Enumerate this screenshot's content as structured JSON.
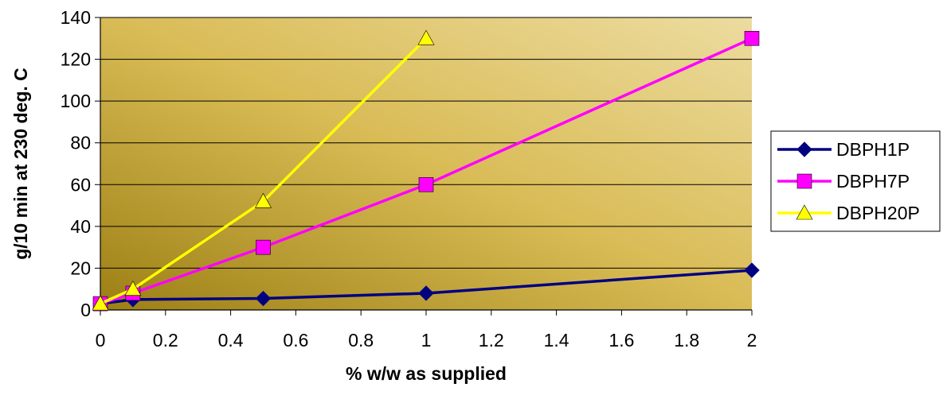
{
  "chart_data": {
    "type": "line",
    "title": "",
    "xlabel": "% w/w as supplied",
    "ylabel": "g/10 min at 230 deg. C",
    "xlim": [
      0,
      2
    ],
    "ylim": [
      0,
      140
    ],
    "xticks": [
      0,
      0.2,
      0.4,
      0.6,
      0.8,
      1,
      1.2,
      1.4,
      1.6,
      1.8,
      2
    ],
    "xtick_labels": [
      "0",
      "0.2",
      "0.4",
      "0.6",
      "0.8",
      "1",
      "1.2",
      "1.4",
      "1.6",
      "1.8",
      "2"
    ],
    "yticks": [
      0,
      20,
      40,
      60,
      80,
      100,
      120,
      140
    ],
    "ytick_labels": [
      "0",
      "20",
      "40",
      "60",
      "80",
      "100",
      "120",
      "140"
    ],
    "grid": "horizontal",
    "legend_position": "right",
    "plot_background": "gold-gradient",
    "series": [
      {
        "name": "DBPH1P",
        "color": "#000080",
        "marker": "diamond",
        "x": [
          0,
          0.1,
          0.5,
          1,
          2
        ],
        "y": [
          3,
          5,
          5.5,
          8,
          19
        ]
      },
      {
        "name": "DBPH7P",
        "color": "#FF00FF",
        "marker": "square",
        "x": [
          0,
          0.1,
          0.5,
          1,
          2
        ],
        "y": [
          3,
          8,
          30,
          60,
          130
        ]
      },
      {
        "name": "DBPH20P",
        "color": "#FFFF00",
        "marker": "triangle",
        "x": [
          0,
          0.1,
          0.5,
          1
        ],
        "y": [
          3,
          10,
          52,
          130
        ]
      }
    ]
  }
}
